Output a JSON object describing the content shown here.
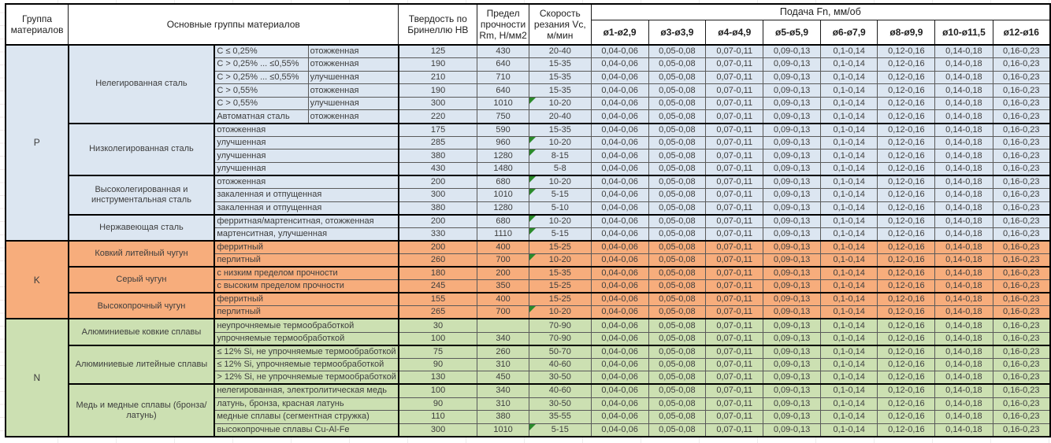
{
  "header": {
    "material_group": "Группа материалов",
    "main_groups": "Основные группы материалов",
    "hardness": "Твердость по Бринеллю НВ",
    "strength": "Предел прочности Rm, Н/мм2",
    "speed": "Скорость резания Vc, м/мин",
    "feed_title": "Подача Fn, мм/об",
    "feed_cols": [
      "ø1-ø2,9",
      "ø3-ø3,9",
      "ø4-ø4,9",
      "ø5-ø5,9",
      "ø6-ø7,9",
      "ø8-ø9,9",
      "ø10-ø11,5",
      "ø12-ø16"
    ]
  },
  "feed_values": [
    "0,04-0,06",
    "0,05-0,08",
    "0,07-0,11",
    "0,09-0,13",
    "0,1-0,14",
    "0,12-0,16",
    "0,14-0,18",
    "0,16-0,23"
  ],
  "colors": {
    "p_section": "#dce6f1",
    "k_section": "#f7ad7c",
    "n_section": "#cce0b2",
    "flag_green": "#2b8a2b",
    "border_black": "#000000",
    "body_text": "#3d3d3d"
  },
  "groups": [
    {
      "letter": "P",
      "color_key": "p_section",
      "bg": "#dce6f1",
      "subgroups": [
        {
          "name": "Нелегированная сталь",
          "rows": [
            {
              "spec": "C ≤ 0,25%",
              "state": "отожженная",
              "hb": "125",
              "rm": "430",
              "vc": "20-40",
              "flag": false
            },
            {
              "spec": "C > 0,25% ... ≤0,55%",
              "state": "отожженная",
              "hb": "190",
              "rm": "640",
              "vc": "15-35",
              "flag": false
            },
            {
              "spec": "C > 0,25% ... ≤0,55%",
              "state": "улучшенная",
              "hb": "210",
              "rm": "710",
              "vc": "15-35",
              "flag": false
            },
            {
              "spec": "C > 0,55%",
              "state": "отожженная",
              "hb": "190",
              "rm": "640",
              "vc": "15-35",
              "flag": false
            },
            {
              "spec": "C > 0,55%",
              "state": "улучшенная",
              "hb": "300",
              "rm": "1010",
              "vc": "10-20",
              "flag": true
            },
            {
              "spec": "Автоматная сталь",
              "state": "отожженная",
              "hb": "220",
              "rm": "750",
              "vc": "20-40",
              "flag": false
            }
          ]
        },
        {
          "name": "Низколегированная сталь",
          "rows": [
            {
              "spec": "отожженная",
              "state": null,
              "hb": "175",
              "rm": "590",
              "vc": "15-35",
              "flag": false
            },
            {
              "spec": "улучшенная",
              "state": null,
              "hb": "285",
              "rm": "960",
              "vc": "10-20",
              "flag": true
            },
            {
              "spec": "улучшенная",
              "state": null,
              "hb": "380",
              "rm": "1280",
              "vc": "8-15",
              "flag": true
            },
            {
              "spec": "улучшенная",
              "state": null,
              "hb": "430",
              "rm": "1480",
              "vc": "5-8",
              "flag": false
            }
          ]
        },
        {
          "name": "Высоколегированная и инструментальная сталь",
          "rows": [
            {
              "spec": "отожженная",
              "state": null,
              "hb": "200",
              "rm": "680",
              "vc": "10-20",
              "flag": true
            },
            {
              "spec": "закаленная и отпущенная",
              "state": null,
              "hb": "300",
              "rm": "1010",
              "vc": "5-15",
              "flag": true
            },
            {
              "spec": "закаленная и отпущенная",
              "state": null,
              "hb": "380",
              "rm": "1280",
              "vc": "5-10",
              "flag": false
            }
          ]
        },
        {
          "name": "Нержавеющая сталь",
          "rows": [
            {
              "spec": "ферритная/мартенситная, отожженная",
              "state": null,
              "hb": "200",
              "rm": "680",
              "vc": "10-20",
              "flag": true
            },
            {
              "spec": "мартенситная, улучшенная",
              "state": null,
              "hb": "330",
              "rm": "1110",
              "vc": "5-15",
              "flag": true
            }
          ]
        }
      ]
    },
    {
      "letter": "K",
      "color_key": "k_section",
      "bg": "#f7ad7c",
      "subgroups": [
        {
          "name": "Ковкий литейный чугун",
          "rows": [
            {
              "spec": "ферритный",
              "state": null,
              "hb": "200",
              "rm": "400",
              "vc": "15-25",
              "flag": false
            },
            {
              "spec": "перлитный",
              "state": null,
              "hb": "260",
              "rm": "700",
              "vc": "10-20",
              "flag": true
            }
          ]
        },
        {
          "name": "Серый чугун",
          "rows": [
            {
              "spec": "с низким пределом прочности",
              "state": null,
              "hb": "180",
              "rm": "200",
              "vc": "15-35",
              "flag": false
            },
            {
              "spec": "с высоким пределом прочности",
              "state": null,
              "hb": "245",
              "rm": "350",
              "vc": "15-25",
              "flag": false
            }
          ]
        },
        {
          "name": "Высокопрочный чугун",
          "rows": [
            {
              "spec": "ферритный",
              "state": null,
              "hb": "155",
              "rm": "400",
              "vc": "15-25",
              "flag": false
            },
            {
              "spec": "перлитный",
              "state": null,
              "hb": "265",
              "rm": "700",
              "vc": "10-20",
              "flag": true
            }
          ]
        }
      ]
    },
    {
      "letter": "N",
      "color_key": "n_section",
      "bg": "#cce0b2",
      "subgroups": [
        {
          "name": "Алюминиевые ковкие сплавы",
          "rows": [
            {
              "spec": "неупрочняемые термообработкой",
              "state": null,
              "hb": "30",
              "rm": "",
              "vc": "70-90",
              "flag": false
            },
            {
              "spec": "упрочняемые термообработкой",
              "state": null,
              "hb": "100",
              "rm": "340",
              "vc": "70-90",
              "flag": false
            }
          ]
        },
        {
          "name": "Алюминиевые литейные сплавы",
          "rows": [
            {
              "spec": "≤ 12% Si, не упрочняемые термообработкой",
              "state": null,
              "hb": "75",
              "rm": "260",
              "vc": "50-70",
              "flag": false
            },
            {
              "spec": "≤ 12% Si, упрочняемые термообработкой",
              "state": null,
              "hb": "90",
              "rm": "310",
              "vc": "40-60",
              "flag": false
            },
            {
              "spec": "> 12% Si, не упрочняемые термообработкой",
              "state": null,
              "hb": "130",
              "rm": "450",
              "vc": "30-50",
              "flag": false
            }
          ]
        },
        {
          "name": "Медь и медные сплавы (бронза/латунь)",
          "rows": [
            {
              "spec": "нелегированная, электролитическая медь",
              "state": null,
              "hb": "100",
              "rm": "340",
              "vc": "40-60",
              "flag": false
            },
            {
              "spec": "латунь, бронза, красная латунь",
              "state": null,
              "hb": "90",
              "rm": "310",
              "vc": "30-50",
              "flag": false
            },
            {
              "spec": "медные сплавы (сегментная стружка)",
              "state": null,
              "hb": "110",
              "rm": "380",
              "vc": "35-55",
              "flag": false
            },
            {
              "spec": "высокопрочные сплавы Cu-Al-Fe",
              "state": null,
              "hb": "300",
              "rm": "1010",
              "vc": "5-15",
              "flag": true
            }
          ]
        }
      ]
    }
  ]
}
